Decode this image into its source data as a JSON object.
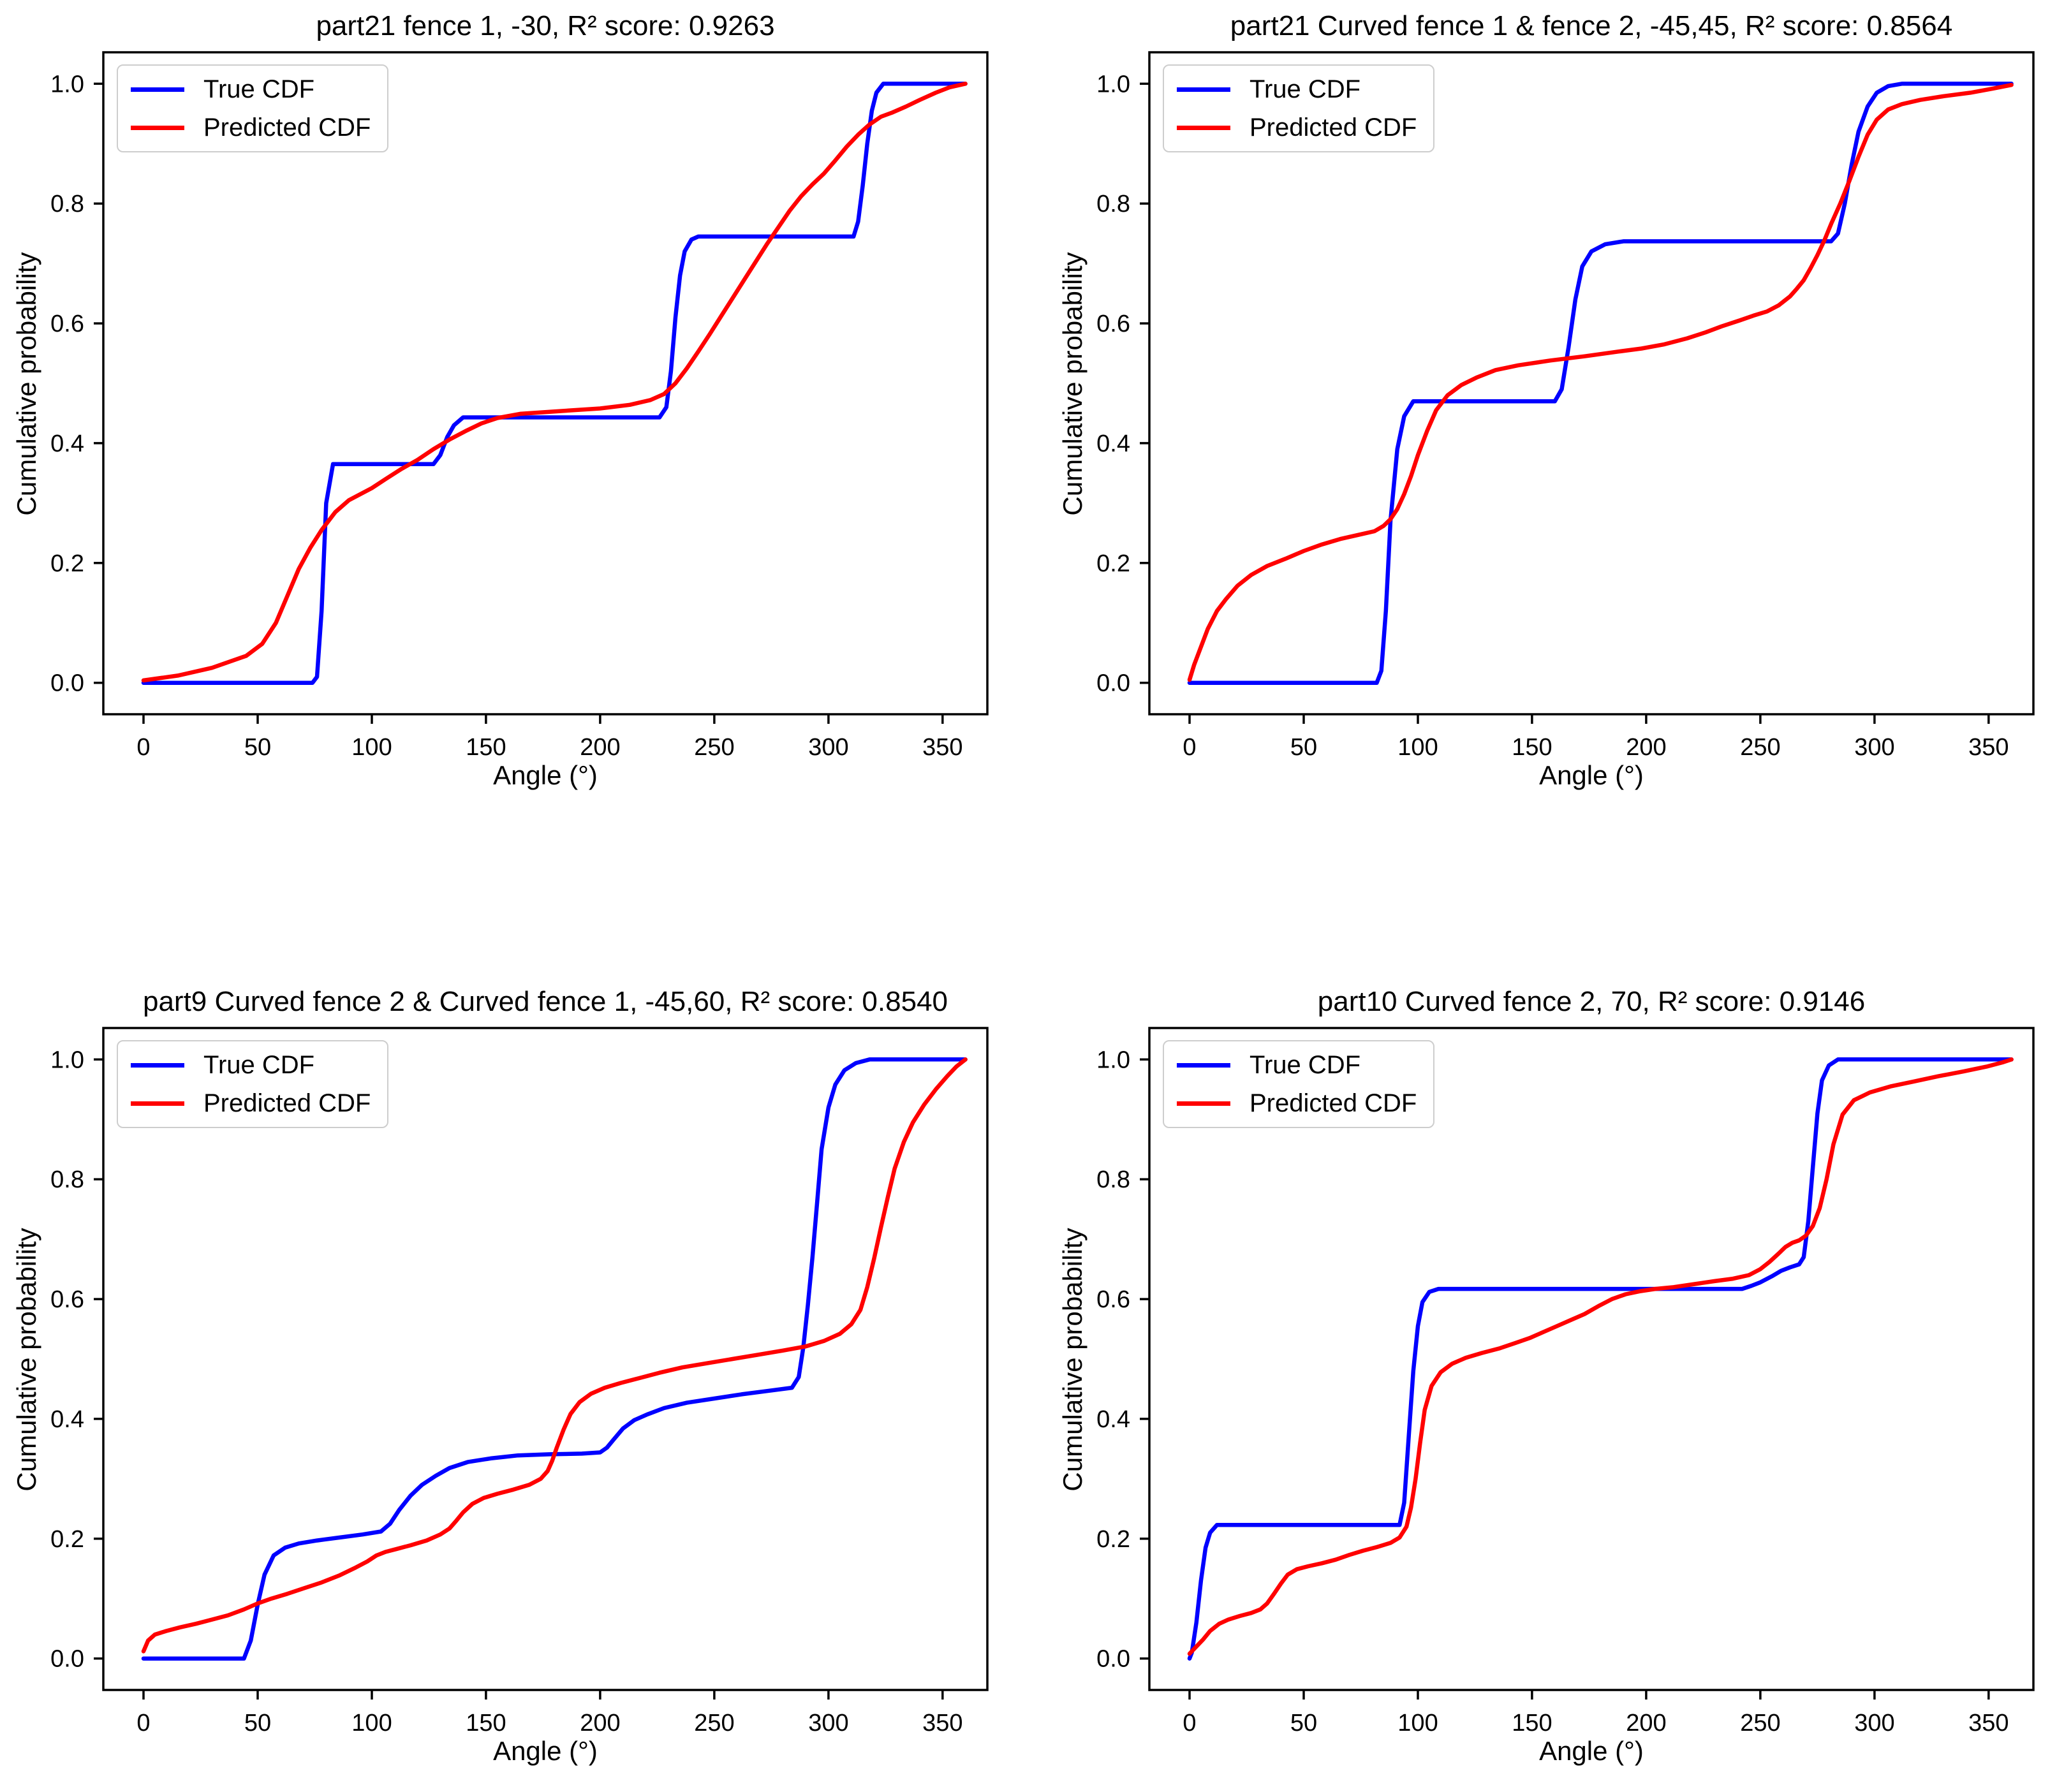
{
  "figure": {
    "background": "#ffffff"
  },
  "colors": {
    "true_cdf": "#0000ff",
    "predicted_cdf": "#ff0000",
    "axis": "#000000",
    "legend_border": "#cdcdcd"
  },
  "legend": {
    "location": "upper left",
    "items": [
      {
        "key": "true_cdf",
        "label": "True CDF"
      },
      {
        "key": "predicted_cdf",
        "label": "Predicted CDF"
      }
    ]
  },
  "axes": {
    "xlabel": "Angle (°)",
    "ylabel": "Cumulative probability",
    "xlim": [
      -17.6,
      369.6
    ],
    "ylim": [
      -0.0525,
      1.0525
    ],
    "grid": false,
    "xticks": [
      {
        "v": 0,
        "label": "0"
      },
      {
        "v": 50,
        "label": "50"
      },
      {
        "v": 100,
        "label": "100"
      },
      {
        "v": 150,
        "label": "150"
      },
      {
        "v": 200,
        "label": "200"
      },
      {
        "v": 250,
        "label": "250"
      },
      {
        "v": 300,
        "label": "300"
      },
      {
        "v": 350,
        "label": "350"
      }
    ],
    "yticks": [
      {
        "v": 0.0,
        "label": "0.0"
      },
      {
        "v": 0.2,
        "label": "0.2"
      },
      {
        "v": 0.4,
        "label": "0.4"
      },
      {
        "v": 0.6,
        "label": "0.6"
      },
      {
        "v": 0.8,
        "label": "0.8"
      },
      {
        "v": 1.0,
        "label": "1.0"
      }
    ]
  },
  "chart_data": [
    {
      "type": "line",
      "title": "part21 fence 1, -30, R² score: 0.9263",
      "r2_score": 0.9263,
      "series": [
        {
          "name": "True CDF",
          "color_key": "true_cdf",
          "x": [
            0,
            74,
            76,
            78,
            80,
            83,
            127,
            130,
            133,
            136,
            140,
            226,
            229,
            231,
            233,
            235,
            237,
            240,
            243,
            311,
            313,
            315,
            317,
            319,
            321,
            324,
            360
          ],
          "y": [
            0,
            0,
            0.01,
            0.12,
            0.3,
            0.365,
            0.365,
            0.38,
            0.41,
            0.43,
            0.443,
            0.443,
            0.46,
            0.52,
            0.61,
            0.68,
            0.72,
            0.74,
            0.745,
            0.745,
            0.77,
            0.83,
            0.9,
            0.955,
            0.985,
            1.0,
            1.0
          ]
        },
        {
          "name": "Predicted CDF",
          "color_key": "predicted_cdf",
          "x": [
            0,
            15,
            30,
            45,
            52,
            58,
            63,
            68,
            73,
            78,
            84,
            90,
            100,
            106,
            113,
            120,
            127,
            134,
            141,
            148,
            155,
            165,
            180,
            200,
            213,
            222,
            228,
            233,
            238,
            243,
            248,
            253,
            258,
            263,
            268,
            273,
            278,
            283,
            288,
            293,
            298,
            303,
            308,
            313,
            318,
            323,
            328,
            334,
            340,
            347,
            353,
            360
          ],
          "y": [
            0.004,
            0.012,
            0.025,
            0.045,
            0.065,
            0.1,
            0.145,
            0.19,
            0.225,
            0.255,
            0.285,
            0.305,
            0.325,
            0.34,
            0.357,
            0.372,
            0.39,
            0.406,
            0.42,
            0.433,
            0.442,
            0.449,
            0.453,
            0.458,
            0.464,
            0.472,
            0.482,
            0.5,
            0.525,
            0.553,
            0.582,
            0.612,
            0.642,
            0.672,
            0.702,
            0.732,
            0.76,
            0.788,
            0.812,
            0.832,
            0.85,
            0.872,
            0.895,
            0.915,
            0.932,
            0.945,
            0.952,
            0.962,
            0.973,
            0.985,
            0.994,
            1.0
          ]
        }
      ]
    },
    {
      "type": "line",
      "title": "part21 Curved fence 1 & fence 2, -45,45, R² score: 0.8564",
      "r2_score": 0.8564,
      "series": [
        {
          "name": "True CDF",
          "color_key": "true_cdf",
          "x": [
            0,
            82,
            84,
            86,
            88,
            91,
            94,
            98,
            160,
            163,
            166,
            169,
            172,
            176,
            182,
            190,
            281,
            284,
            287,
            290,
            293,
            297,
            301,
            306,
            312,
            360
          ],
          "y": [
            0,
            0,
            0.02,
            0.12,
            0.27,
            0.39,
            0.445,
            0.47,
            0.47,
            0.49,
            0.56,
            0.64,
            0.695,
            0.72,
            0.732,
            0.737,
            0.737,
            0.75,
            0.8,
            0.865,
            0.92,
            0.962,
            0.985,
            0.996,
            1.0,
            1.0
          ]
        },
        {
          "name": "Predicted CDF",
          "color_key": "predicted_cdf",
          "x": [
            0,
            2,
            5,
            8,
            12,
            16,
            21,
            27,
            34,
            42,
            50,
            58,
            66,
            74,
            81,
            85,
            88,
            91,
            94,
            97,
            100,
            104,
            108,
            113,
            119,
            126,
            134,
            144,
            158,
            173,
            188,
            198,
            208,
            218,
            226,
            233,
            241,
            247,
            253,
            258,
            263,
            266,
            269,
            272,
            275,
            278,
            281,
            285,
            289,
            293,
            297,
            301,
            306,
            312,
            320,
            330,
            342,
            352,
            360
          ],
          "y": [
            0.005,
            0.03,
            0.06,
            0.09,
            0.12,
            0.14,
            0.162,
            0.18,
            0.195,
            0.207,
            0.22,
            0.231,
            0.24,
            0.247,
            0.253,
            0.262,
            0.273,
            0.29,
            0.315,
            0.345,
            0.38,
            0.42,
            0.455,
            0.48,
            0.497,
            0.51,
            0.522,
            0.53,
            0.538,
            0.545,
            0.553,
            0.558,
            0.565,
            0.575,
            0.585,
            0.595,
            0.605,
            0.613,
            0.62,
            0.63,
            0.645,
            0.658,
            0.672,
            0.692,
            0.714,
            0.738,
            0.766,
            0.8,
            0.838,
            0.878,
            0.915,
            0.94,
            0.957,
            0.966,
            0.973,
            0.979,
            0.985,
            0.992,
            0.998
          ]
        }
      ]
    },
    {
      "type": "line",
      "title": "part9 Curved fence 2 & Curved fence 1, -45,60, R² score: 0.8540",
      "r2_score": 0.854,
      "series": [
        {
          "name": "True CDF",
          "color_key": "true_cdf",
          "x": [
            0,
            44,
            47,
            50,
            53,
            57,
            62,
            68,
            76,
            86,
            96,
            104,
            108,
            112,
            117,
            122,
            128,
            134,
            142,
            152,
            164,
            178,
            192,
            200,
            203,
            206,
            210,
            215,
            221,
            228,
            238,
            250,
            262,
            274,
            284,
            287,
            289,
            291,
            293,
            295,
            297,
            300,
            303,
            307,
            312,
            318,
            360
          ],
          "y": [
            0,
            0,
            0.03,
            0.09,
            0.14,
            0.172,
            0.185,
            0.192,
            0.197,
            0.202,
            0.207,
            0.212,
            0.225,
            0.248,
            0.272,
            0.29,
            0.305,
            0.318,
            0.328,
            0.334,
            0.339,
            0.341,
            0.342,
            0.344,
            0.352,
            0.366,
            0.384,
            0.398,
            0.408,
            0.418,
            0.427,
            0.434,
            0.441,
            0.447,
            0.452,
            0.47,
            0.52,
            0.59,
            0.67,
            0.76,
            0.85,
            0.92,
            0.958,
            0.982,
            0.994,
            1.0,
            1.0
          ]
        },
        {
          "name": "Predicted CDF",
          "color_key": "predicted_cdf",
          "x": [
            0,
            2,
            5,
            10,
            16,
            23,
            30,
            37,
            44,
            50,
            56,
            63,
            70,
            78,
            86,
            93,
            98,
            102,
            106,
            111,
            117,
            124,
            130,
            134,
            137,
            140,
            144,
            149,
            155,
            162,
            169,
            174,
            177,
            179,
            181,
            184,
            187,
            191,
            196,
            202,
            209,
            217,
            226,
            236,
            247,
            258,
            269,
            280,
            290,
            298,
            305,
            310,
            314,
            317,
            320,
            323,
            326,
            329,
            333,
            337,
            342,
            347,
            352,
            356,
            360
          ],
          "y": [
            0.012,
            0.03,
            0.04,
            0.046,
            0.052,
            0.058,
            0.065,
            0.072,
            0.082,
            0.092,
            0.1,
            0.108,
            0.117,
            0.127,
            0.139,
            0.152,
            0.162,
            0.172,
            0.178,
            0.183,
            0.189,
            0.197,
            0.207,
            0.217,
            0.23,
            0.244,
            0.258,
            0.268,
            0.275,
            0.282,
            0.29,
            0.3,
            0.313,
            0.33,
            0.352,
            0.382,
            0.408,
            0.428,
            0.442,
            0.452,
            0.46,
            0.468,
            0.477,
            0.486,
            0.493,
            0.5,
            0.507,
            0.514,
            0.521,
            0.53,
            0.542,
            0.558,
            0.582,
            0.62,
            0.668,
            0.72,
            0.77,
            0.818,
            0.862,
            0.895,
            0.925,
            0.95,
            0.972,
            0.988,
            1.0
          ]
        }
      ]
    },
    {
      "type": "line",
      "title": "part10 Curved fence 2, 70, R² score: 0.9146",
      "r2_score": 0.9146,
      "series": [
        {
          "name": "True CDF",
          "color_key": "true_cdf",
          "x": [
            0,
            1,
            3,
            5,
            7,
            9,
            12,
            92,
            94,
            96,
            98,
            100,
            102,
            105,
            109,
            242,
            246,
            250,
            255,
            259,
            263,
            267,
            269,
            271,
            273,
            275,
            277,
            280,
            284,
            360
          ],
          "y": [
            0,
            0.01,
            0.06,
            0.13,
            0.185,
            0.21,
            0.223,
            0.223,
            0.26,
            0.37,
            0.48,
            0.555,
            0.595,
            0.612,
            0.617,
            0.617,
            0.622,
            0.628,
            0.638,
            0.647,
            0.653,
            0.658,
            0.67,
            0.73,
            0.82,
            0.91,
            0.965,
            0.99,
            1.0,
            1.0
          ]
        },
        {
          "name": "Predicted CDF",
          "color_key": "predicted_cdf",
          "x": [
            0,
            3,
            6,
            9,
            13,
            17,
            22,
            27,
            31,
            34,
            37,
            40,
            43,
            47,
            52,
            58,
            64,
            70,
            76,
            82,
            88,
            92,
            95,
            97,
            99,
            101,
            103,
            106,
            110,
            115,
            121,
            128,
            136,
            143,
            149,
            155,
            161,
            167,
            173,
            179,
            185,
            191,
            197,
            204,
            212,
            221,
            230,
            238,
            245,
            250,
            254,
            258,
            261,
            264,
            267,
            270,
            273,
            276,
            279,
            282,
            286,
            291,
            298,
            307,
            317,
            328,
            339,
            349,
            356,
            360
          ],
          "y": [
            0.008,
            0.02,
            0.032,
            0.046,
            0.058,
            0.065,
            0.071,
            0.076,
            0.082,
            0.092,
            0.108,
            0.125,
            0.14,
            0.149,
            0.154,
            0.159,
            0.165,
            0.173,
            0.18,
            0.186,
            0.193,
            0.202,
            0.22,
            0.252,
            0.3,
            0.36,
            0.415,
            0.455,
            0.478,
            0.492,
            0.502,
            0.51,
            0.518,
            0.527,
            0.535,
            0.545,
            0.555,
            0.565,
            0.575,
            0.588,
            0.6,
            0.608,
            0.613,
            0.617,
            0.62,
            0.625,
            0.63,
            0.634,
            0.64,
            0.65,
            0.662,
            0.676,
            0.687,
            0.694,
            0.698,
            0.706,
            0.722,
            0.752,
            0.8,
            0.858,
            0.908,
            0.932,
            0.945,
            0.955,
            0.963,
            0.972,
            0.98,
            0.988,
            0.995,
            1.0
          ]
        }
      ]
    }
  ]
}
